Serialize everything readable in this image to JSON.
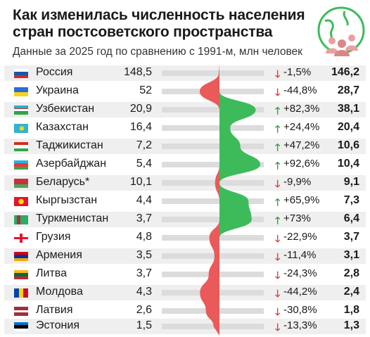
{
  "title": "Как изменилась численность населения стран постсоветского пространства",
  "subtitle": "Данные за 2025 год по сравнению с 1991-м, млн человек",
  "colors": {
    "increase": "#3dbb5a",
    "decrease": "#ea5a5a",
    "bar": "#dcdcdc",
    "stripe": "#efefef"
  },
  "icon": "people-globe-icon",
  "chart_data": {
    "type": "bar",
    "categories": [
      "Россия",
      "Украина",
      "Узбекистан",
      "Казахстан",
      "Таджикистан",
      "Азербайджан",
      "Беларусь*",
      "Кыргызстан",
      "Туркменистан",
      "Грузия",
      "Армения",
      "Литва",
      "Молдова",
      "Латвия",
      "Эстония"
    ],
    "series": [
      {
        "key": "1991",
        "values": [
          "148,5",
          "52",
          "20,9",
          "16,4",
          "7,2",
          "5,4",
          "10,1",
          "4,4",
          "3,7",
          "4,8",
          "3,5",
          "3,7",
          "4,3",
          "2,6",
          "1,5"
        ]
      },
      {
        "key": "change",
        "values": [
          "-1,5%",
          "-44,8%",
          "+82,3%",
          "+24,4%",
          "+47,2%",
          "+92,6%",
          "-9,9%",
          "+65,9%",
          "+73%",
          "-22,9%",
          "-11,4%",
          "-24,3%",
          "-44,2%",
          "-30,8%",
          "-13,3%"
        ]
      },
      {
        "key": "2025",
        "values": [
          "146,2",
          "28,7",
          "38,1",
          "20,4",
          "10,6",
          "10,4",
          "9,1",
          "7,3",
          "6,4",
          "3,7",
          "3,1",
          "2,8",
          "2,4",
          "1,8",
          "1,3"
        ]
      }
    ],
    "change_numeric": [
      -1.5,
      -44.8,
      82.3,
      24.4,
      47.2,
      92.6,
      -9.9,
      65.9,
      73,
      -22.9,
      -11.4,
      -24.3,
      -44.2,
      -30.8,
      -13.3
    ]
  }
}
